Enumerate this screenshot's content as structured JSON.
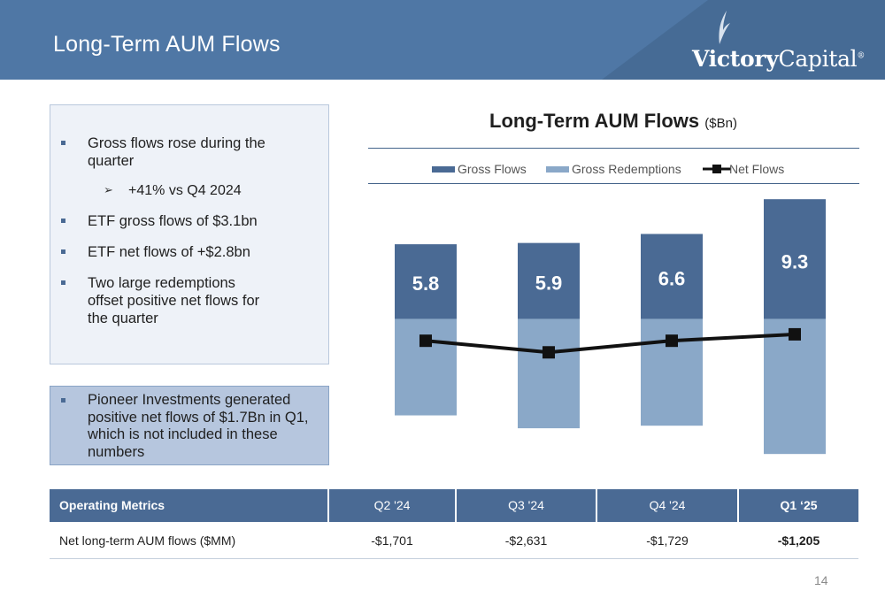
{
  "slide": {
    "title": "Long-Term AUM Flows",
    "page_number": "14"
  },
  "brand": {
    "logo_text_bold": "Victory",
    "logo_text_light": "Capital",
    "logo_mark": "®",
    "header_color": "#4f77a5",
    "header_dark": "#466b95",
    "accent_dark": "#4a6a94",
    "accent_light": "#8aa8c8"
  },
  "bullets": {
    "items": [
      "Gross flows rose during the quarter",
      "ETF gross flows of $3.1bn",
      "ETF net flows of +$2.8bn",
      "Two large redemptions offset positive net flows for the quarter"
    ],
    "sub_item": "+41% vs Q4 2024",
    "note": "Pioneer Investments generated positive net flows of $1.7Bn in Q1, which is not included in these numbers"
  },
  "chart_data": {
    "type": "bar",
    "title": "Long-Term AUM Flows",
    "unit": "($Bn)",
    "categories": [
      "Q2 '24",
      "Q3 '24",
      "Q4 '24",
      "Q1 '25"
    ],
    "series": [
      {
        "name": "Gross Flows",
        "values": [
          5.8,
          5.9,
          6.6,
          9.3
        ],
        "color": "#4a6a94"
      },
      {
        "name": "Gross Redemptions",
        "values": [
          -7.5,
          -8.5,
          -8.3,
          -10.5
        ],
        "color": "#8aa8c8"
      },
      {
        "name": "Net Flows",
        "values": [
          -1.7,
          -2.6,
          -1.7,
          -1.2
        ],
        "color": "#111111"
      }
    ],
    "data_labels": [
      "5.8",
      "5.9",
      "6.6",
      "9.3"
    ],
    "category_labels_shown": false,
    "ylim": [
      -12,
      10
    ],
    "grid": false,
    "legend": "top-center"
  },
  "table": {
    "headers": [
      "Operating Metrics",
      "Q2 '24",
      "Q3 '24",
      "Q4 '24",
      "Q1 ‘25"
    ],
    "row_label": "Net long-term AUM flows ($MM)",
    "values": [
      "-$1,701",
      "-$2,631",
      "-$1,729",
      "-$1,205"
    ]
  }
}
